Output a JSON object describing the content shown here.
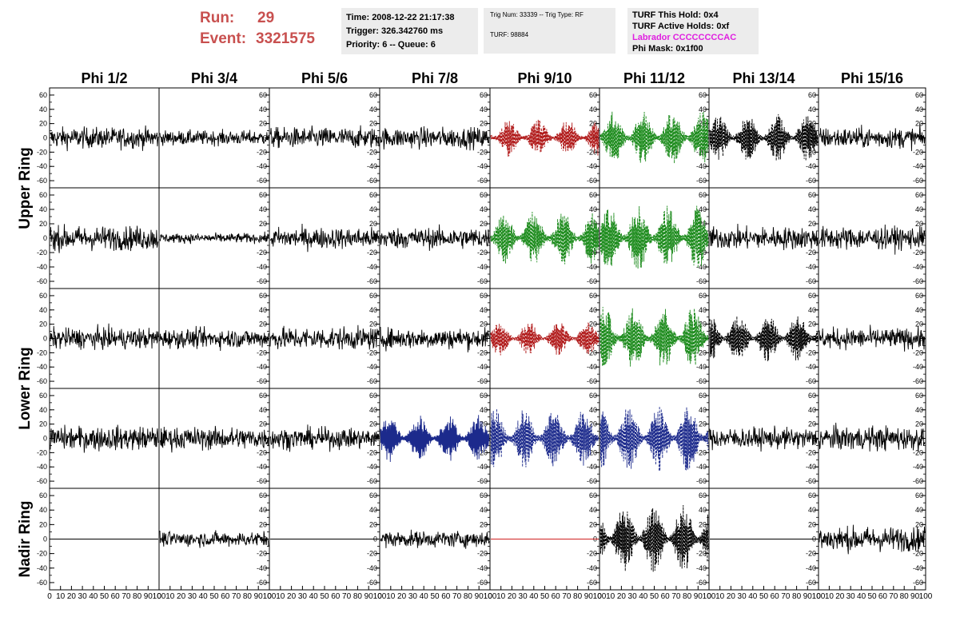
{
  "header": {
    "run_label": "Run:",
    "run_value": "29",
    "event_label": "Event:",
    "event_value": "3321575",
    "time_line": "Time: 2008-12-22 21:17:38",
    "trigger_line": "Trigger: 326.342760 ms",
    "priority_line": "Priority: 6 -- Queue: 6",
    "trig_num_line": "Trig Num: 33339 -- Trig Type: RF",
    "turf_line": "TURF: 98884",
    "turf_hold_line": "TURF This Hold: 0x4",
    "turf_active_line": "TURF Active Holds: 0xf",
    "labrador_line": "Labrador CCCCCCCCAC",
    "phi_mask_line": "Phi Mask: 0x1f00"
  },
  "chart_data": {
    "type": "line",
    "description_columns": [
      "Phi 1/2",
      "Phi 3/4",
      "Phi 5/6",
      "Phi 7/8",
      "Phi 9/10",
      "Phi 11/12",
      "Phi 13/14",
      "Phi 15/16"
    ],
    "row_groups": [
      {
        "label": "Upper Ring",
        "rows": [
          0,
          1
        ]
      },
      {
        "label": "Lower Ring",
        "rows": [
          2,
          3
        ]
      },
      {
        "label": "Nadir Ring",
        "rows": [
          4
        ]
      }
    ],
    "y_range": [
      -70,
      70
    ],
    "y_ticks": [
      -60,
      -40,
      -20,
      0,
      20,
      40,
      60
    ],
    "x_range": [
      0,
      100
    ],
    "x_tick_labels": [
      "0",
      "10",
      "20",
      "30",
      "40",
      "50",
      "60",
      "70",
      "80",
      "90",
      "100"
    ],
    "x_unit": "ns",
    "samples_per_trace": 256,
    "colors": {
      "black": "#000000",
      "red": "#b01818",
      "green": "#1a8a1a",
      "blue": "#1c2a8c",
      "flat": "#d02020"
    },
    "grid": false,
    "panels": [
      [
        {
          "amp": 13,
          "color": "black"
        },
        {
          "amp": 9,
          "color": "black"
        },
        {
          "amp": 13,
          "color": "black"
        },
        {
          "amp": 13,
          "color": "black"
        },
        {
          "amp": 22,
          "color": "red",
          "dashed": true,
          "osc": true
        },
        {
          "amp": 32,
          "color": "green",
          "dashed": true,
          "osc": true
        },
        {
          "amp": 28,
          "color": "black",
          "dashed": true,
          "osc": true
        },
        {
          "amp": 13,
          "color": "black"
        }
      ],
      [
        {
          "amp": 15,
          "color": "black"
        },
        {
          "amp": 6,
          "color": "black"
        },
        {
          "amp": 13,
          "color": "black"
        },
        {
          "amp": 13,
          "color": "black"
        },
        {
          "amp": 32,
          "color": "green",
          "dashed": true,
          "osc": true
        },
        {
          "amp": 38,
          "color": "green",
          "dashed": true,
          "osc": true
        },
        {
          "amp": 14,
          "color": "black"
        },
        {
          "amp": 14,
          "color": "black"
        }
      ],
      [
        {
          "amp": 13,
          "color": "black"
        },
        {
          "amp": 12,
          "color": "black"
        },
        {
          "amp": 14,
          "color": "black"
        },
        {
          "amp": 13,
          "color": "black"
        },
        {
          "amp": 20,
          "color": "red",
          "dashed": true,
          "osc": true
        },
        {
          "amp": 38,
          "color": "green",
          "dashed": true,
          "osc": true
        },
        {
          "amp": 30,
          "color": "black",
          "dashed": true,
          "osc": true
        },
        {
          "amp": 13,
          "color": "black"
        }
      ],
      [
        {
          "amp": 15,
          "color": "black"
        },
        {
          "amp": 14,
          "color": "black"
        },
        {
          "amp": 13,
          "color": "black"
        },
        {
          "amp": 28,
          "color": "blue",
          "osc": true
        },
        {
          "amp": 36,
          "color": "blue",
          "dashed": true,
          "osc": true
        },
        {
          "amp": 40,
          "color": "blue",
          "dashed": true,
          "osc": true
        },
        {
          "amp": 13,
          "color": "black"
        },
        {
          "amp": 15,
          "color": "black"
        }
      ],
      [
        {
          "amp": 0,
          "color": "black"
        },
        {
          "amp": 9,
          "color": "black"
        },
        {
          "amp": 0,
          "color": "black"
        },
        {
          "amp": 10,
          "color": "black"
        },
        {
          "amp": 0,
          "color": "flat"
        },
        {
          "amp": 40,
          "color": "black",
          "dashed": true,
          "osc": true
        },
        {
          "amp": 0,
          "color": "black"
        },
        {
          "amp": 15,
          "color": "black"
        }
      ]
    ]
  }
}
